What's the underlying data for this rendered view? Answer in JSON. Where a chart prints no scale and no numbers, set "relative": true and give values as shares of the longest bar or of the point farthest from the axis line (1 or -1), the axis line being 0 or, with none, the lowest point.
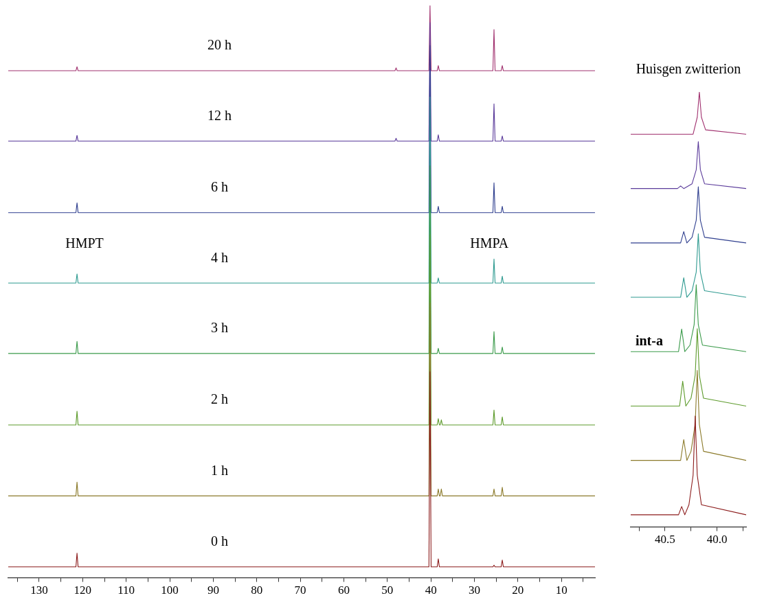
{
  "chart_data": [
    {
      "type": "line",
      "relative": true,
      "grid": false,
      "legend": false,
      "marker": "none",
      "line_style": "solid",
      "xlim": [
        137.1,
        2.3
      ],
      "xticks": [
        {
          "value": 135,
          "label": null
        },
        130,
        {
          "value": 125,
          "label": null
        },
        120,
        {
          "value": 115,
          "label": null
        },
        110,
        {
          "value": 105,
          "label": null
        },
        100,
        {
          "value": 95,
          "label": null
        },
        90,
        {
          "value": 85,
          "label": null
        },
        80,
        {
          "value": 75,
          "label": null
        },
        70,
        {
          "value": 65,
          "label": null
        },
        60,
        {
          "value": 55,
          "label": null
        },
        50,
        {
          "value": 45,
          "label": null
        },
        40,
        {
          "value": 35,
          "label": null
        },
        30,
        {
          "value": 25,
          "label": null
        },
        20,
        {
          "value": 15,
          "label": null
        },
        10,
        {
          "value": 5,
          "label": null
        }
      ],
      "annotations": [
        "HMPT",
        "HMPA"
      ],
      "series": [
        {
          "name": "0 h",
          "color": "#8b1a1a",
          "x": [
            137.1,
            121.55,
            121.3,
            121.05,
            40.45,
            40.2,
            39.95,
            38.55,
            38.3,
            38.05,
            25.75,
            25.5,
            25.25,
            23.85,
            23.6,
            23.35,
            2.3
          ],
          "values": [
            0.019,
            0.019,
            0.043,
            0.019,
            0.019,
            0.36,
            0.019,
            0.019,
            0.033,
            0.019,
            0.019,
            0.022,
            0.019,
            0.019,
            0.031,
            0.019,
            0.019
          ]
        },
        {
          "name": "1 h",
          "color": "#8b7a2a",
          "x": [
            137.1,
            121.55,
            121.3,
            121.05,
            40.45,
            40.2,
            39.95,
            38.55,
            38.3,
            38.05,
            37.85,
            37.6,
            37.35,
            25.75,
            25.5,
            25.25,
            23.85,
            23.6,
            23.35,
            2.3
          ],
          "values": [
            0.143,
            0.143,
            0.167,
            0.143,
            0.143,
            0.48,
            0.143,
            0.143,
            0.155,
            0.143,
            0.143,
            0.155,
            0.143,
            0.143,
            0.155,
            0.143,
            0.143,
            0.158,
            0.143,
            0.143
          ]
        },
        {
          "name": "2 h",
          "color": "#5c9a2a",
          "x": [
            137.1,
            121.55,
            121.3,
            121.05,
            40.45,
            40.2,
            39.95,
            38.55,
            38.3,
            38.05,
            37.85,
            37.6,
            37.35,
            25.75,
            25.5,
            25.25,
            23.85,
            23.6,
            23.35,
            2.3
          ],
          "values": [
            0.267,
            0.267,
            0.291,
            0.267,
            0.267,
            0.6,
            0.267,
            0.267,
            0.278,
            0.267,
            0.267,
            0.276,
            0.267,
            0.267,
            0.293,
            0.267,
            0.267,
            0.281,
            0.267,
            0.267
          ]
        },
        {
          "name": "3 h",
          "color": "#3a9a4a",
          "x": [
            137.1,
            121.55,
            121.3,
            121.05,
            40.45,
            40.2,
            39.95,
            38.55,
            38.3,
            38.05,
            25.75,
            25.5,
            25.25,
            23.85,
            23.6,
            23.35,
            2.3
          ],
          "values": [
            0.392,
            0.392,
            0.413,
            0.392,
            0.392,
            0.72,
            0.392,
            0.392,
            0.401,
            0.392,
            0.392,
            0.43,
            0.392,
            0.392,
            0.403,
            0.392,
            0.392
          ]
        },
        {
          "name": "4 h",
          "color": "#2e9a90",
          "x": [
            137.1,
            121.55,
            121.3,
            121.05,
            40.45,
            40.2,
            39.95,
            38.55,
            38.3,
            38.05,
            25.75,
            25.5,
            25.25,
            23.85,
            23.6,
            23.35,
            2.3
          ],
          "values": [
            0.515,
            0.515,
            0.531,
            0.515,
            0.515,
            0.84,
            0.515,
            0.515,
            0.524,
            0.515,
            0.515,
            0.557,
            0.515,
            0.515,
            0.527,
            0.515,
            0.515
          ]
        },
        {
          "name": "6 h",
          "color": "#2e3e8e",
          "x": [
            137.1,
            121.55,
            121.3,
            121.05,
            40.45,
            40.2,
            39.95,
            38.55,
            38.3,
            38.05,
            25.75,
            25.5,
            25.25,
            23.85,
            23.6,
            23.35,
            2.3
          ],
          "values": [
            0.638,
            0.638,
            0.655,
            0.638,
            0.638,
            0.93,
            0.638,
            0.638,
            0.649,
            0.638,
            0.638,
            0.69,
            0.638,
            0.638,
            0.649,
            0.638,
            0.638
          ]
        },
        {
          "name": "12 h",
          "color": "#5a3a9a",
          "x": [
            137.1,
            121.55,
            121.3,
            121.05,
            48.25,
            48,
            47.75,
            40.45,
            40.2,
            39.95,
            38.55,
            38.3,
            38.05,
            25.75,
            25.5,
            25.25,
            23.85,
            23.6,
            23.35,
            2.3
          ],
          "values": [
            0.763,
            0.763,
            0.773,
            0.763,
            0.763,
            0.768,
            0.763,
            0.763,
            0.97,
            0.763,
            0.763,
            0.774,
            0.763,
            0.763,
            0.828,
            0.763,
            0.763,
            0.772,
            0.763,
            0.763
          ]
        },
        {
          "name": "20 h",
          "color": "#a0306e",
          "x": [
            137.1,
            121.55,
            121.3,
            121.05,
            48.25,
            48,
            47.75,
            40.45,
            40.2,
            39.95,
            38.55,
            38.3,
            38.05,
            25.75,
            25.5,
            25.25,
            23.85,
            23.6,
            23.35,
            2.3
          ],
          "values": [
            0.886,
            0.886,
            0.893,
            0.886,
            0.886,
            0.891,
            0.886,
            0.886,
            1.0,
            0.886,
            0.886,
            0.895,
            0.886,
            0.886,
            0.958,
            0.886,
            0.886,
            0.895,
            0.886,
            0.886
          ]
        }
      ]
    },
    {
      "type": "line",
      "relative": true,
      "grid": false,
      "legend": false,
      "marker": "none",
      "line_style": "solid",
      "title": "Huisgen zwitterion",
      "xlim": [
        40.83,
        39.72
      ],
      "xticks": [
        {
          "value": 40.75,
          "label": null
        },
        40.5,
        {
          "value": 40.25,
          "label": null
        },
        {
          "value": 40,
          "label": "40.0"
        },
        {
          "value": 39.75,
          "label": null
        }
      ],
      "annotations": [
        "int-a"
      ],
      "series": [
        {
          "color": "#8b1a1a",
          "x": [
            40.83,
            40.37,
            40.34,
            40.31,
            40.27,
            40.23,
            40.21,
            40.19,
            40.15,
            39.72
          ],
          "values": [
            0.028,
            0.028,
            0.047,
            0.028,
            0.051,
            0.119,
            0.255,
            0.119,
            0.051,
            0.028
          ]
        },
        {
          "color": "#8b7a2a",
          "x": [
            40.83,
            40.35,
            40.32,
            40.29,
            40.25,
            40.21,
            40.19,
            40.17,
            40.13,
            39.72
          ],
          "values": [
            0.153,
            0.153,
            0.201,
            0.153,
            0.174,
            0.236,
            0.36,
            0.236,
            0.174,
            0.153
          ]
        },
        {
          "color": "#5c9a2a",
          "x": [
            40.83,
            40.36,
            40.33,
            40.3,
            40.25,
            40.21,
            40.19,
            40.17,
            40.13,
            39.72
          ],
          "values": [
            0.278,
            0.278,
            0.335,
            0.278,
            0.296,
            0.349,
            0.456,
            0.349,
            0.296,
            0.278
          ]
        },
        {
          "color": "#3a9a4a",
          "x": [
            40.83,
            40.37,
            40.34,
            40.31,
            40.26,
            40.22,
            40.2,
            40.18,
            40.14,
            39.72
          ],
          "values": [
            0.403,
            0.403,
            0.455,
            0.403,
            0.418,
            0.465,
            0.557,
            0.465,
            0.418,
            0.403
          ]
        },
        {
          "color": "#2e9a90",
          "x": [
            40.83,
            40.35,
            40.32,
            40.29,
            40.24,
            40.2,
            40.18,
            40.16,
            40.12,
            39.72
          ],
          "values": [
            0.528,
            0.528,
            0.573,
            0.528,
            0.543,
            0.586,
            0.674,
            0.586,
            0.543,
            0.528
          ]
        },
        {
          "color": "#2e3e8e",
          "x": [
            40.83,
            40.35,
            40.32,
            40.29,
            40.24,
            40.2,
            40.18,
            40.16,
            40.12,
            39.72
          ],
          "values": [
            0.653,
            0.653,
            0.679,
            0.653,
            0.666,
            0.705,
            0.782,
            0.705,
            0.666,
            0.653
          ]
        },
        {
          "color": "#5a3a9a",
          "x": [
            40.83,
            40.38,
            40.35,
            40.32,
            40.24,
            40.2,
            40.18,
            40.16,
            40.12,
            39.72
          ],
          "values": [
            0.778,
            0.778,
            0.784,
            0.778,
            0.789,
            0.821,
            0.886,
            0.821,
            0.789,
            0.778
          ]
        },
        {
          "color": "#a0306e",
          "x": [
            40.83,
            40.23,
            40.19,
            40.17,
            40.15,
            40.11,
            39.72
          ],
          "values": [
            0.903,
            0.903,
            0.942,
            1.0,
            0.942,
            0.913,
            0.903
          ]
        }
      ]
    }
  ]
}
